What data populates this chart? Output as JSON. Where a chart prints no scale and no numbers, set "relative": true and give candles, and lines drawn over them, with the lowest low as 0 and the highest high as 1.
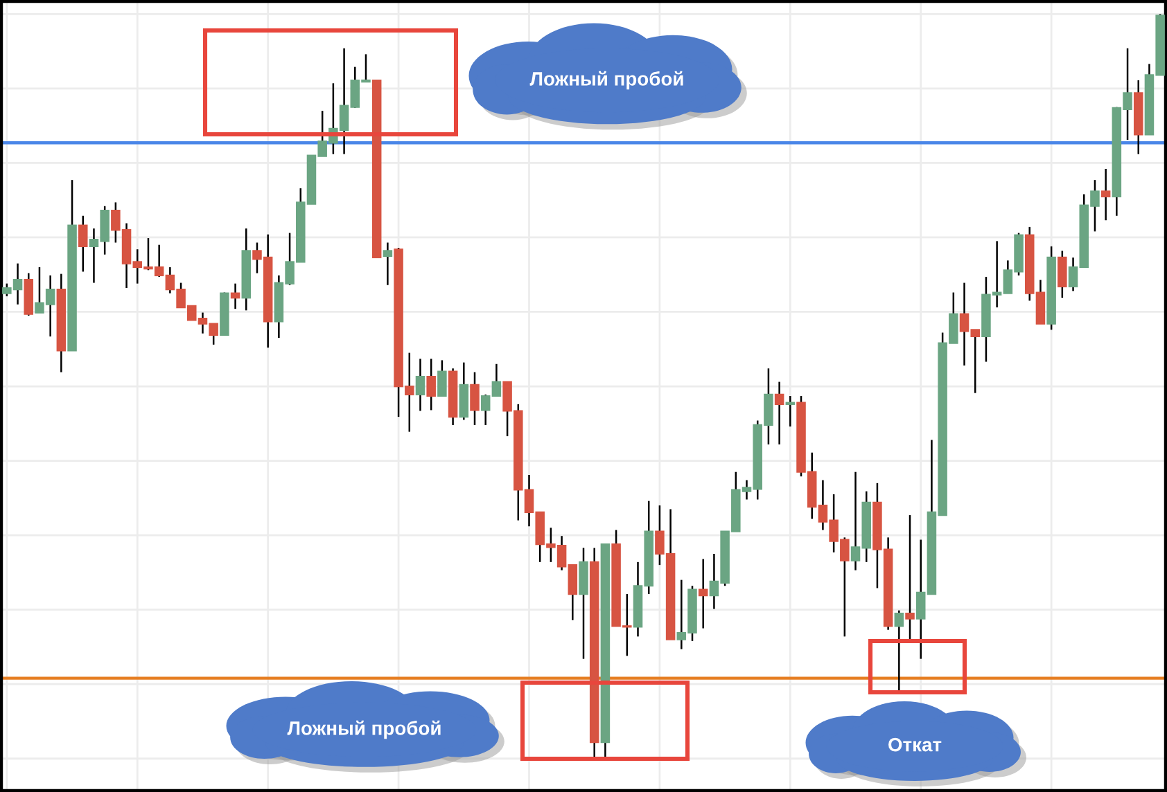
{
  "chart_data": {
    "type": "candlestick",
    "relative": true,
    "annotations": [
      "Ложный пробой",
      "Ложный пробой",
      "Откат"
    ],
    "categories": [
      null,
      null,
      null,
      null,
      null,
      null,
      null,
      null,
      null,
      null,
      null,
      null,
      null,
      null,
      null,
      null,
      null,
      null,
      null,
      null,
      null,
      null,
      null,
      null,
      null,
      null,
      null,
      null,
      null,
      null,
      null,
      null,
      null,
      null,
      null,
      null,
      null,
      null,
      null,
      null,
      null,
      null,
      null,
      null,
      null,
      null,
      null,
      null,
      null,
      null,
      null,
      null,
      null,
      null,
      null,
      null,
      null,
      null,
      null,
      null,
      null,
      null,
      null,
      null,
      null,
      null,
      null,
      null,
      null,
      null,
      null,
      null,
      null,
      null,
      null,
      null,
      null,
      null,
      null,
      null,
      null,
      null,
      null,
      null,
      null,
      null,
      null,
      null,
      null,
      null,
      null,
      null,
      null,
      null,
      null,
      null,
      null,
      null,
      null,
      null,
      null,
      null,
      null,
      null,
      null,
      null,
      null
    ],
    "ohlc": [
      [
        0.625,
        0.638,
        0.621,
        0.632
      ],
      [
        0.63,
        0.665,
        0.61,
        0.643
      ],
      [
        0.643,
        0.652,
        0.595,
        0.597
      ],
      [
        0.599,
        0.66,
        0.599,
        0.612
      ],
      [
        0.61,
        0.649,
        0.567,
        0.63
      ],
      [
        0.63,
        0.651,
        0.519,
        0.548
      ],
      [
        0.548,
        0.777,
        0.548,
        0.716
      ],
      [
        0.716,
        0.729,
        0.654,
        0.688
      ],
      [
        0.688,
        0.712,
        0.639,
        0.697
      ],
      [
        0.695,
        0.742,
        0.677,
        0.736
      ],
      [
        0.736,
        0.747,
        0.693,
        0.71
      ],
      [
        0.71,
        0.719,
        0.632,
        0.665
      ],
      [
        0.667,
        0.684,
        0.638,
        0.66
      ],
      [
        0.66,
        0.699,
        0.656,
        0.658
      ],
      [
        0.66,
        0.69,
        0.647,
        0.649
      ],
      [
        0.649,
        0.66,
        0.625,
        0.63
      ],
      [
        0.63,
        0.639,
        0.606,
        0.606
      ],
      [
        0.608,
        0.608,
        0.589,
        0.589
      ],
      [
        0.591,
        0.599,
        0.571,
        0.584
      ],
      [
        0.584,
        0.584,
        0.556,
        0.569
      ],
      [
        0.569,
        0.626,
        0.569,
        0.625
      ],
      [
        0.625,
        0.638,
        0.604,
        0.619
      ],
      [
        0.619,
        0.712,
        0.602,
        0.682
      ],
      [
        0.682,
        0.693,
        0.652,
        0.671
      ],
      [
        0.673,
        0.704,
        0.552,
        0.587
      ],
      [
        0.587,
        0.649,
        0.565,
        0.639
      ],
      [
        0.638,
        0.706,
        0.636,
        0.667
      ],
      [
        0.667,
        0.766,
        0.667,
        0.747
      ],
      [
        0.745,
        0.81,
        0.745,
        0.81
      ],
      [
        0.809,
        0.87,
        0.809,
        0.829
      ],
      [
        0.827,
        0.907,
        0.812,
        0.846
      ],
      [
        0.844,
        0.954,
        0.812,
        0.877
      ],
      [
        0.875,
        0.929,
        0.874,
        0.911
      ],
      [
        0.909,
        0.946,
        0.909,
        0.911
      ],
      [
        0.911,
        0.911,
        0.673,
        0.673
      ],
      [
        0.675,
        0.693,
        0.636,
        0.682
      ],
      [
        0.684,
        0.686,
        0.459,
        0.5
      ],
      [
        0.5,
        0.545,
        0.439,
        0.489
      ],
      [
        0.489,
        0.537,
        0.467,
        0.513
      ],
      [
        0.513,
        0.537,
        0.468,
        0.487
      ],
      [
        0.487,
        0.535,
        0.487,
        0.52
      ],
      [
        0.52,
        0.524,
        0.448,
        0.459
      ],
      [
        0.459,
        0.532,
        0.455,
        0.502
      ],
      [
        0.502,
        0.519,
        0.448,
        0.468
      ],
      [
        0.468,
        0.489,
        0.448,
        0.487
      ],
      [
        0.487,
        0.53,
        0.487,
        0.506
      ],
      [
        0.506,
        0.506,
        0.433,
        0.467
      ],
      [
        0.467,
        0.476,
        0.32,
        0.361
      ],
      [
        0.361,
        0.381,
        0.312,
        0.331
      ],
      [
        0.331,
        0.331,
        0.264,
        0.288
      ],
      [
        0.288,
        0.31,
        0.264,
        0.284
      ],
      [
        0.286,
        0.299,
        0.253,
        0.258
      ],
      [
        0.26,
        0.26,
        0.186,
        0.221
      ],
      [
        0.221,
        0.283,
        0.134,
        0.264
      ],
      [
        0.264,
        0.283,
        0.002,
        0.022
      ],
      [
        0.022,
        0.288,
        0,
        0.288
      ],
      [
        0.288,
        0.307,
        0.178,
        0.178
      ],
      [
        0.178,
        0.221,
        0.138,
        0.177
      ],
      [
        0.177,
        0.264,
        0.164,
        0.232
      ],
      [
        0.232,
        0.346,
        0.221,
        0.305
      ],
      [
        0.305,
        0.34,
        0.26,
        0.275
      ],
      [
        0.275,
        0.335,
        0.16,
        0.16
      ],
      [
        0.16,
        0.24,
        0.147,
        0.169
      ],
      [
        0.169,
        0.232,
        0.158,
        0.227
      ],
      [
        0.227,
        0.268,
        0.175,
        0.219
      ],
      [
        0.219,
        0.275,
        0.201,
        0.238
      ],
      [
        0.236,
        0.305,
        0.232,
        0.305
      ],
      [
        0.305,
        0.385,
        0.305,
        0.361
      ],
      [
        0.359,
        0.374,
        0.348,
        0.364
      ],
      [
        0.362,
        0.454,
        0.348,
        0.448
      ],
      [
        0.448,
        0.524,
        0.422,
        0.489
      ],
      [
        0.489,
        0.506,
        0.422,
        0.476
      ],
      [
        0.476,
        0.487,
        0.446,
        0.478
      ],
      [
        0.478,
        0.487,
        0.379,
        0.385
      ],
      [
        0.385,
        0.411,
        0.322,
        0.338
      ],
      [
        0.34,
        0.374,
        0.307,
        0.318
      ],
      [
        0.32,
        0.355,
        0.277,
        0.292
      ],
      [
        0.294,
        0.297,
        0.164,
        0.266
      ],
      [
        0.266,
        0.385,
        0.253,
        0.284
      ],
      [
        0.283,
        0.359,
        0.264,
        0.344
      ],
      [
        0.344,
        0.37,
        0.229,
        0.281
      ],
      [
        0.281,
        0.297,
        0.173,
        0.178
      ],
      [
        0.178,
        0.199,
        0.091,
        0.195
      ],
      [
        0.195,
        0.327,
        0.156,
        0.188
      ],
      [
        0.188,
        0.294,
        0.134,
        0.223
      ],
      [
        0.221,
        0.428,
        0.221,
        0.331
      ],
      [
        0.327,
        0.572,
        0.327,
        0.558
      ],
      [
        0.558,
        0.626,
        0.558,
        0.597
      ],
      [
        0.597,
        0.639,
        0.528,
        0.574
      ],
      [
        0.576,
        0.576,
        0.491,
        0.567
      ],
      [
        0.567,
        0.647,
        0.533,
        0.623
      ],
      [
        0.623,
        0.695,
        0.606,
        0.626
      ],
      [
        0.625,
        0.669,
        0.625,
        0.656
      ],
      [
        0.654,
        0.706,
        0.649,
        0.703
      ],
      [
        0.703,
        0.714,
        0.615,
        0.625
      ],
      [
        0.626,
        0.643,
        0.584,
        0.584
      ],
      [
        0.584,
        0.688,
        0.576,
        0.673
      ],
      [
        0.673,
        0.682,
        0.619,
        0.634
      ],
      [
        0.634,
        0.673,
        0.628,
        0.66
      ],
      [
        0.66,
        0.758,
        0.66,
        0.743
      ],
      [
        0.742,
        0.777,
        0.708,
        0.762
      ],
      [
        0.762,
        0.792,
        0.723,
        0.755
      ],
      [
        0.755,
        0.875,
        0.729,
        0.874
      ],
      [
        0.872,
        0.954,
        0.831,
        0.894
      ],
      [
        0.894,
        0.911,
        0.812,
        0.838
      ],
      [
        0.838,
        0.933,
        0.838,
        0.918
      ],
      [
        0.918,
        1,
        0.918,
        0.998
      ]
    ],
    "colors": [
      "#6ba583",
      "#6ba583",
      "#d75442",
      "#6ba583",
      "#6ba583",
      "#d75442",
      "#6ba583",
      "#d75442",
      "#6ba583",
      "#6ba583",
      "#d75442",
      "#d75442",
      "#d75442",
      "#d75442",
      "#d75442",
      "#d75442",
      "#d75442",
      "#d75442",
      "#d75442",
      "#d75442",
      "#6ba583",
      "#d75442",
      "#6ba583",
      "#d75442",
      "#d75442",
      "#6ba583",
      "#6ba583",
      "#6ba583",
      "#6ba583",
      "#6ba583",
      "#6ba583",
      "#6ba583",
      "#6ba583",
      "#6ba583",
      "#d75442",
      "#6ba583",
      "#d75442",
      "#d75442",
      "#6ba583",
      "#d75442",
      "#6ba583",
      "#d75442",
      "#6ba583",
      "#d75442",
      "#6ba583",
      "#6ba583",
      "#d75442",
      "#d75442",
      "#d75442",
      "#d75442",
      "#d75442",
      "#d75442",
      "#d75442",
      "#6ba583",
      "#d75442",
      "#6ba583",
      "#d75442",
      "#d75442",
      "#6ba583",
      "#6ba583",
      "#d75442",
      "#d75442",
      "#6ba583",
      "#6ba583",
      "#d75442",
      "#6ba583",
      "#6ba583",
      "#6ba583",
      "#6ba583",
      "#6ba583",
      "#6ba583",
      "#d75442",
      "#6ba583",
      "#d75442",
      "#d75442",
      "#d75442",
      "#d75442",
      "#d75442",
      "#6ba583",
      "#6ba583",
      "#d75442",
      "#d75442",
      "#6ba583",
      "#d75442",
      "#6ba583",
      "#6ba583",
      "#6ba583",
      "#6ba583",
      "#d75442",
      "#d75442",
      "#6ba583",
      "#6ba583",
      "#6ba583",
      "#6ba583",
      "#d75442",
      "#d75442",
      "#6ba583",
      "#d75442",
      "#6ba583",
      "#6ba583",
      "#6ba583",
      "#d75442",
      "#6ba583",
      "#6ba583",
      "#d75442",
      "#6ba583",
      "#6ba583"
    ],
    "ref_lines": [
      {
        "axis": "y",
        "value": 0.827,
        "color": "#4a86e8"
      },
      {
        "axis": "y",
        "value": 0.108,
        "color": "#e67e22"
      }
    ],
    "grid": true
  }
}
